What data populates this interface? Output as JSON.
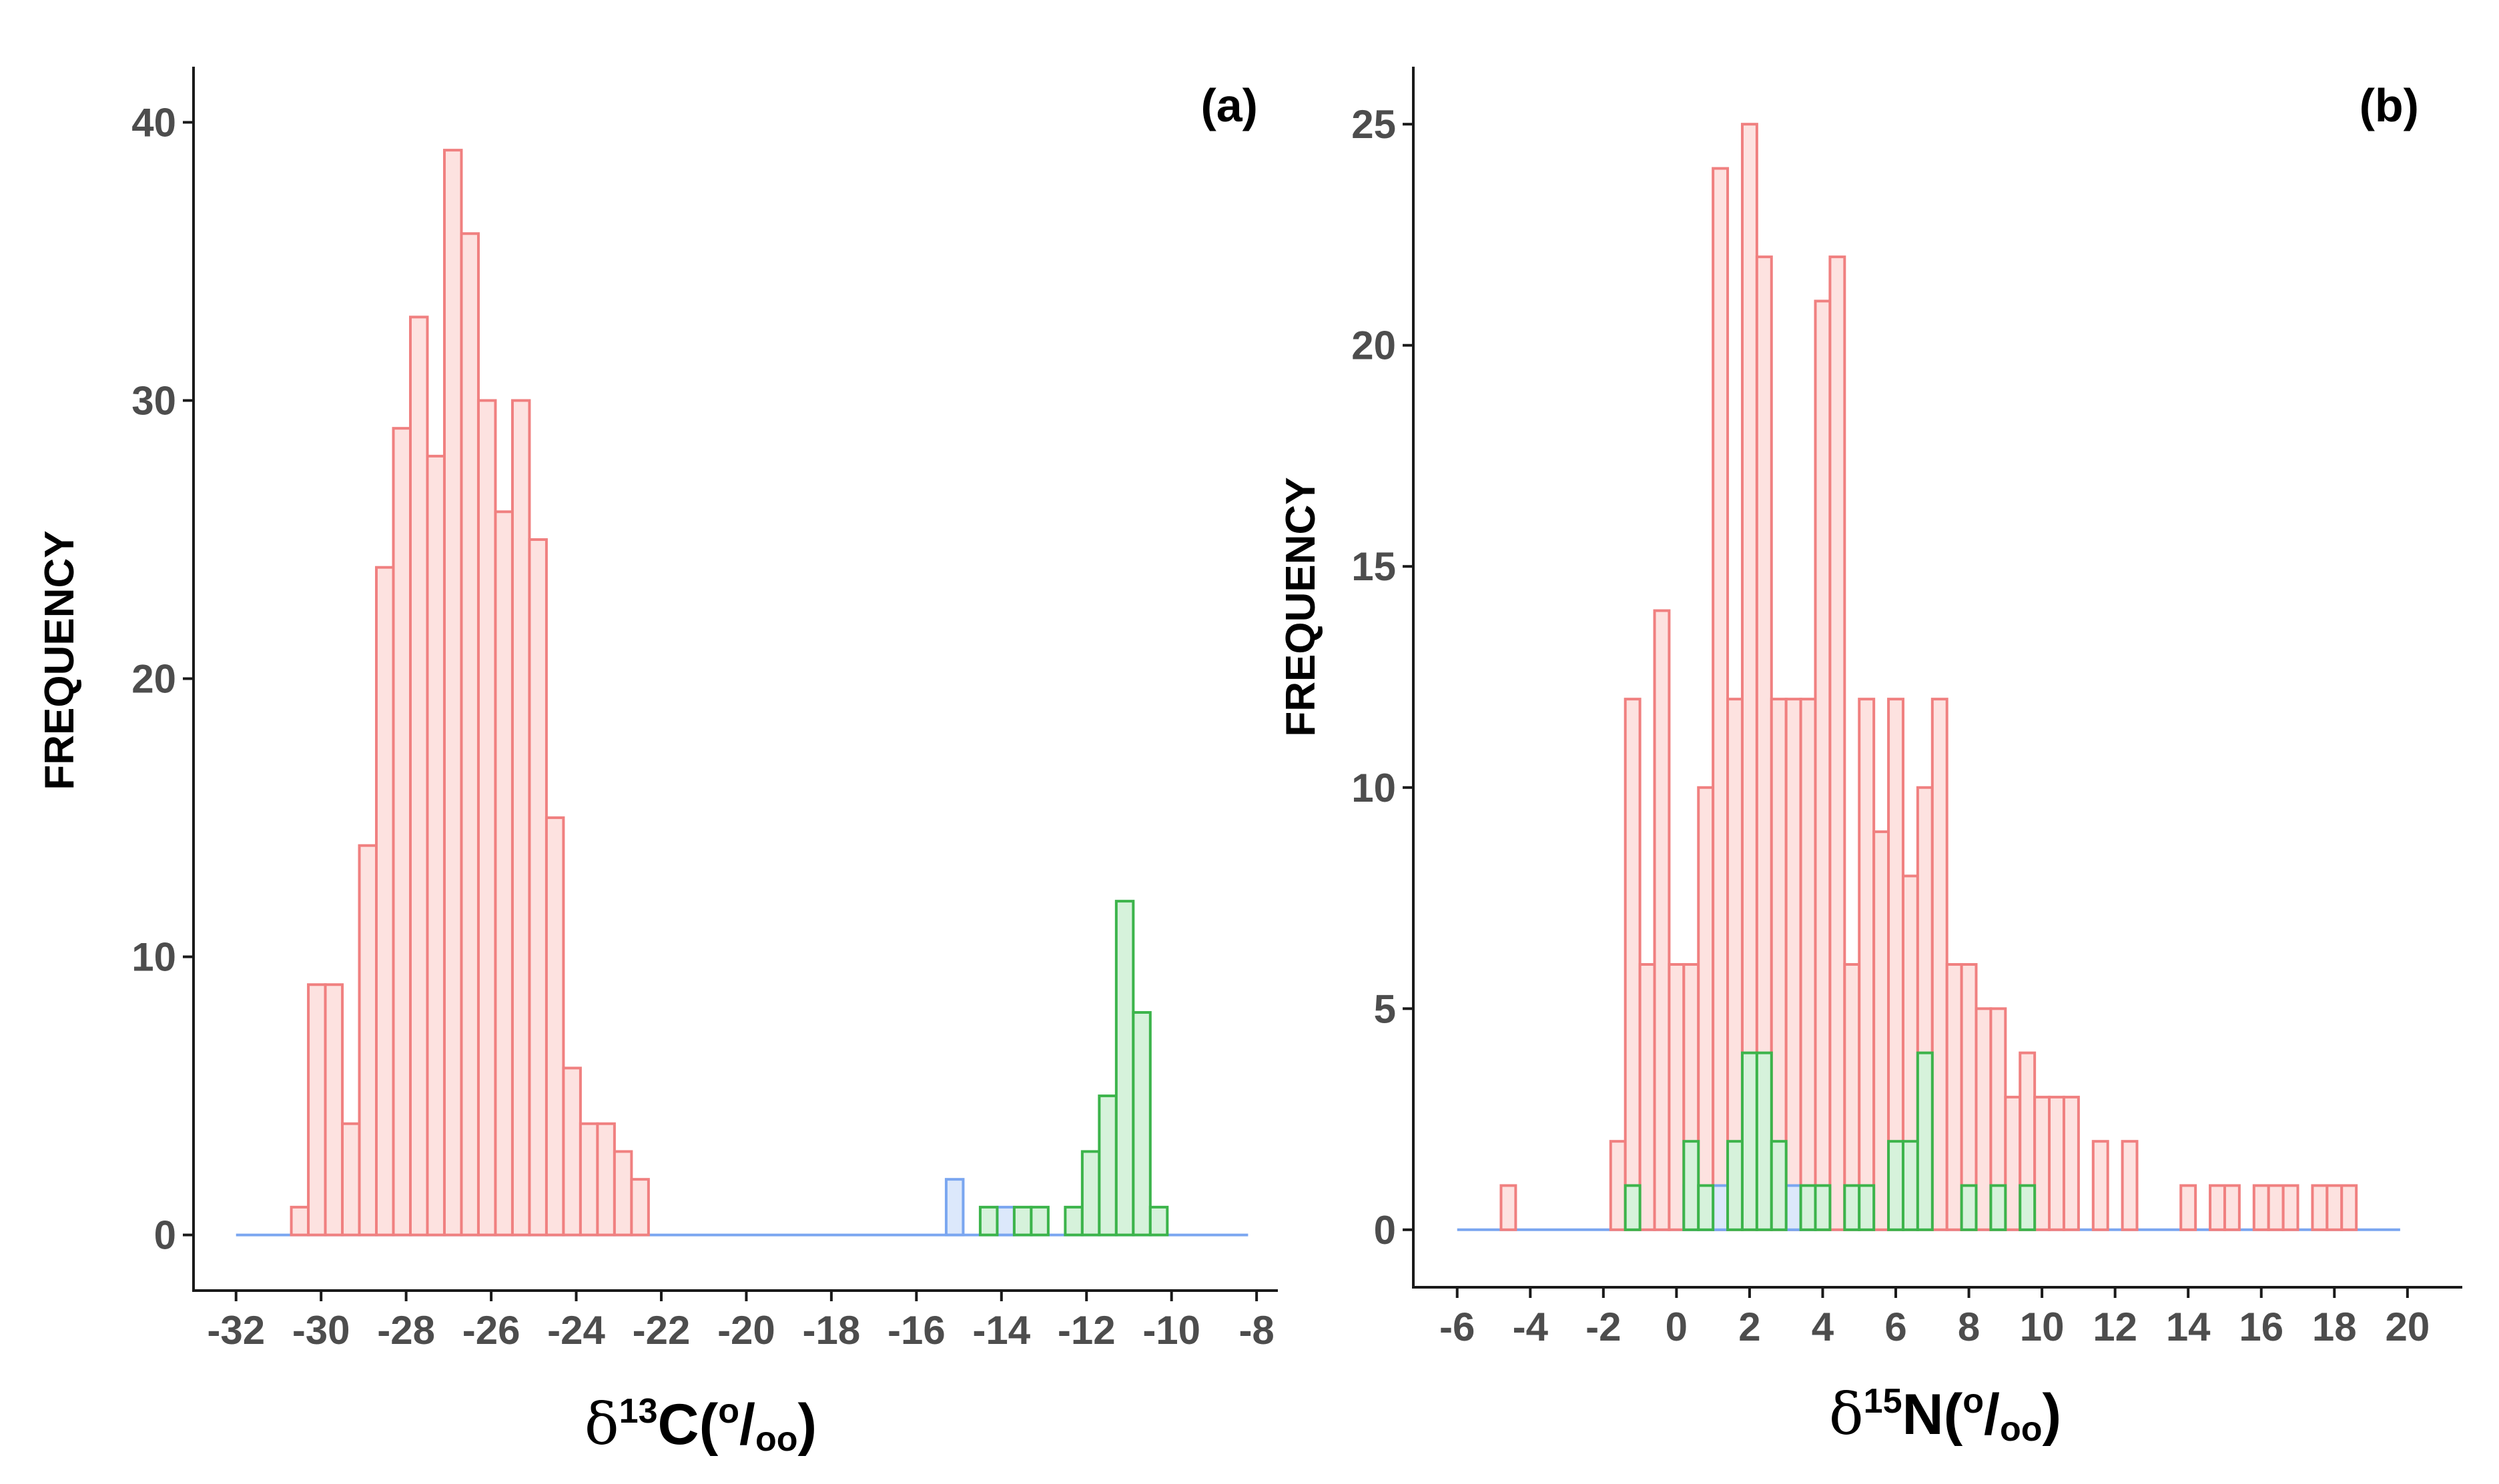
{
  "chart_data": [
    {
      "type": "histogram",
      "panel_label": "(a)",
      "ylabel": "FREQUENCY",
      "xlabel": {
        "delta": "δ",
        "sup": "13",
        "element": "C(",
        "unit_sup": "o",
        "slash": "/",
        "unit_sub": "oo",
        "close": ")"
      },
      "xlim": [
        -33,
        -7.5
      ],
      "ylim": [
        -2,
        42
      ],
      "xticks": [
        -32,
        -30,
        -28,
        -26,
        -24,
        -22,
        -20,
        -18,
        -16,
        -14,
        -12,
        -10,
        -8
      ],
      "yticks": [
        0,
        10,
        20,
        30,
        40
      ],
      "baseline": {
        "x_start": -32,
        "x_end": -8.2,
        "color": "#7aa6f0"
      },
      "series": [
        {
          "name": "red",
          "stroke": "#f08080",
          "fill": "#fde2e0",
          "bin_start": -30.7,
          "bin_width": 0.4,
          "counts": [
            1,
            9,
            9,
            4,
            14,
            24,
            29,
            33,
            28,
            39,
            36,
            30,
            26,
            30,
            25,
            15,
            6,
            4,
            4,
            3,
            2
          ]
        },
        {
          "name": "blue",
          "stroke": "#7aa6f0",
          "fill": "#dce8fb",
          "bins": [
            [
              -15.3,
              2
            ],
            [
              -14.1,
              1
            ]
          ],
          "bin_width": 0.4
        },
        {
          "name": "green",
          "stroke": "#3cb44b",
          "fill": "#d6f2db",
          "bins": [
            [
              -14.5,
              1
            ],
            [
              -13.7,
              1
            ],
            [
              -13.3,
              1
            ],
            [
              -12.5,
              1
            ],
            [
              -12.1,
              3
            ],
            [
              -11.7,
              5
            ],
            [
              -11.3,
              12
            ],
            [
              -10.9,
              8
            ],
            [
              -10.5,
              1
            ]
          ],
          "bin_width": 0.4
        }
      ]
    },
    {
      "type": "histogram",
      "panel_label": "(b)",
      "ylabel": "FREQUENCY",
      "xlabel": {
        "delta": "δ",
        "sup": "15",
        "element": "N(",
        "unit_sup": "o",
        "slash": "/",
        "unit_sub": "oo",
        "close": ")"
      },
      "xlim": [
        -7.2,
        21.5
      ],
      "ylim": [
        -1.3,
        26.3
      ],
      "xticks": [
        -6,
        -4,
        -2,
        0,
        2,
        4,
        6,
        8,
        10,
        12,
        14,
        16,
        18,
        20
      ],
      "yticks": [
        0,
        5,
        10,
        15,
        20,
        25
      ],
      "baseline": {
        "x_start": -6,
        "x_end": 19.8,
        "color": "#7aa6f0"
      },
      "series": [
        {
          "name": "red",
          "stroke": "#f08080",
          "fill": "#fde2e0",
          "bins": [
            [
              -4.8,
              1
            ],
            [
              -1.8,
              2
            ],
            [
              -1.4,
              12
            ],
            [
              -1.0,
              6
            ],
            [
              -0.6,
              14
            ],
            [
              -0.2,
              6
            ],
            [
              0.2,
              6
            ],
            [
              0.6,
              10
            ],
            [
              1.0,
              24
            ],
            [
              1.4,
              12
            ],
            [
              1.8,
              25
            ],
            [
              2.2,
              22
            ],
            [
              2.6,
              12
            ],
            [
              3.0,
              12
            ],
            [
              3.4,
              12
            ],
            [
              3.8,
              21
            ],
            [
              4.2,
              22
            ],
            [
              4.6,
              6
            ],
            [
              5.0,
              12
            ],
            [
              5.4,
              9
            ],
            [
              5.8,
              12
            ],
            [
              6.2,
              8
            ],
            [
              6.6,
              10
            ],
            [
              7.0,
              12
            ],
            [
              7.4,
              6
            ],
            [
              7.8,
              6
            ],
            [
              8.2,
              5
            ],
            [
              8.6,
              5
            ],
            [
              9.0,
              3
            ],
            [
              9.4,
              4
            ],
            [
              9.8,
              3
            ],
            [
              10.2,
              3
            ],
            [
              10.6,
              3
            ],
            [
              11.4,
              2
            ],
            [
              12.2,
              2
            ],
            [
              13.8,
              1
            ],
            [
              14.6,
              1
            ],
            [
              15.0,
              1
            ],
            [
              15.8,
              1
            ],
            [
              16.2,
              1
            ],
            [
              16.6,
              1
            ],
            [
              17.4,
              1
            ],
            [
              17.8,
              1
            ],
            [
              18.2,
              1
            ]
          ],
          "bin_width": 0.4
        },
        {
          "name": "blue",
          "stroke": "#7aa6f0",
          "fill": "#dce8fb",
          "bins": [
            [
              0.2,
              1
            ],
            [
              0.6,
              1
            ],
            [
              1.0,
              1
            ],
            [
              3.0,
              1
            ],
            [
              3.4,
              1
            ]
          ],
          "bin_width": 0.4
        },
        {
          "name": "green",
          "stroke": "#3cb44b",
          "fill": "#d6f2db",
          "bins": [
            [
              -1.4,
              1
            ],
            [
              0.2,
              2
            ],
            [
              0.6,
              1
            ],
            [
              1.4,
              2
            ],
            [
              1.8,
              4
            ],
            [
              2.2,
              4
            ],
            [
              2.6,
              2
            ],
            [
              3.4,
              1
            ],
            [
              3.8,
              1
            ],
            [
              4.6,
              1
            ],
            [
              5.0,
              1
            ],
            [
              5.8,
              2
            ],
            [
              6.2,
              2
            ],
            [
              6.6,
              4
            ],
            [
              7.8,
              1
            ],
            [
              8.6,
              1
            ],
            [
              9.4,
              1
            ]
          ],
          "bin_width": 0.4
        }
      ]
    }
  ]
}
